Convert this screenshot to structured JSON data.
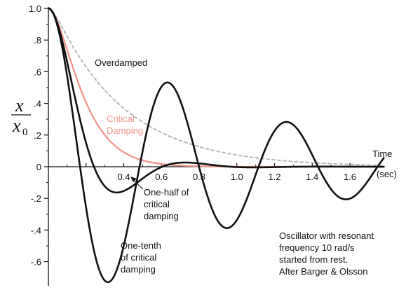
{
  "chart_data": {
    "type": "line",
    "xlabel": "Time",
    "xlabel_unit": "(sec)",
    "ylabel_numerator": "x",
    "ylabel_denominator": "x",
    "ylabel_denominator_subscript": "0",
    "xlim": [
      0,
      1.6
    ],
    "ylim": [
      -0.75,
      1.0
    ],
    "x_ticks": [
      {
        "value": 0.4,
        "label": "0.4"
      },
      {
        "value": 0.6,
        "label": "0.6"
      },
      {
        "value": 0.8,
        "label": "0.8"
      },
      {
        "value": 1.0,
        "label": "1.0"
      },
      {
        "value": 1.2,
        "label": "1.2"
      },
      {
        "value": 1.4,
        "label": "1.4"
      },
      {
        "value": 1.6,
        "label": "1.6"
      }
    ],
    "y_ticks": [
      {
        "value": 1.0,
        "label": "1.0"
      },
      {
        "value": 0.8,
        "label": ".8"
      },
      {
        "value": 0.6,
        "label": ".6"
      },
      {
        "value": 0.4,
        "label": ".4"
      },
      {
        "value": 0.2,
        "label": ".2"
      },
      {
        "value": 0.0,
        "label": "0"
      },
      {
        "value": -0.2,
        "label": "-.2"
      },
      {
        "value": -0.4,
        "label": "-.4"
      },
      {
        "value": -0.6,
        "label": "-.6"
      }
    ],
    "grid": false,
    "omega0_rad_per_s": 10,
    "series": [
      {
        "id": "overdamped",
        "name": "Overdamped",
        "damping_ratio": 2.0,
        "color": "#b8b8b8",
        "dashed": true,
        "x": [
          0,
          0.1,
          0.2,
          0.3,
          0.4,
          0.5,
          0.6,
          0.7,
          0.8,
          0.9,
          1.0,
          1.2,
          1.4,
          1.6
        ],
        "y": [
          1.0,
          0.88,
          0.73,
          0.59,
          0.48,
          0.39,
          0.31,
          0.25,
          0.2,
          0.16,
          0.13,
          0.08,
          0.05,
          0.03
        ]
      },
      {
        "id": "critical",
        "name_lines": [
          "Critical",
          "Damping"
        ],
        "damping_ratio": 1.0,
        "color": "#f0928a",
        "dashed": false,
        "x": [
          0,
          0.1,
          0.2,
          0.3,
          0.4,
          0.5,
          0.6,
          0.7,
          0.8,
          1.0
        ],
        "y": [
          1.0,
          0.74,
          0.41,
          0.2,
          0.09,
          0.04,
          0.02,
          0.01,
          0.0,
          0.0
        ]
      },
      {
        "id": "half-critical",
        "name_lines": [
          "One-half of",
          "critical",
          "damping"
        ],
        "damping_ratio": 0.5,
        "color": "#111111",
        "dashed": false,
        "x": [
          0,
          0.1,
          0.2,
          0.3,
          0.36,
          0.45,
          0.6,
          0.7,
          0.8,
          0.9,
          1.0
        ],
        "y": [
          1.0,
          0.8,
          0.3,
          -0.08,
          -0.16,
          -0.08,
          0.0,
          0.03,
          0.02,
          0.0,
          0.0
        ]
      },
      {
        "id": "tenth-critical",
        "name_lines": [
          "One-tenth",
          "of critical",
          "damping"
        ],
        "damping_ratio": 0.1,
        "color": "#111111",
        "dashed": false,
        "x": [
          0,
          0.16,
          0.32,
          0.48,
          0.64,
          0.8,
          0.96,
          1.12,
          1.28,
          1.44,
          1.6
        ],
        "y": [
          1.0,
          0.0,
          -0.72,
          0.0,
          0.52,
          0.0,
          -0.38,
          0.0,
          0.28,
          0.0,
          -0.2
        ]
      }
    ],
    "annotations": [
      "Oscillator with resonant",
      "frequency 10 rad/s",
      "started from rest.",
      "After Barger & Olsson"
    ]
  }
}
